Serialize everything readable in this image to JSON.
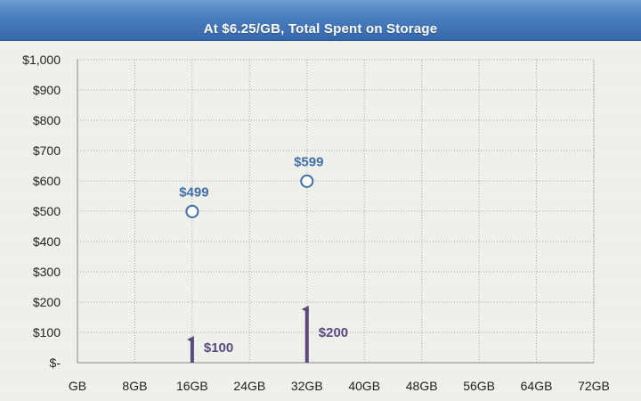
{
  "chart_data": {
    "type": "scatter",
    "title": "At $6.25/GB, Total Spent on Storage",
    "xlabel": "",
    "ylabel": "",
    "x_ticks": [
      "GB",
      "8GB",
      "16GB",
      "24GB",
      "32GB",
      "40GB",
      "48GB",
      "56GB",
      "64GB",
      "72GB"
    ],
    "xlim": [
      0,
      72
    ],
    "y_ticks": [
      "$-",
      "$100",
      "$200",
      "$300",
      "$400",
      "$500",
      "$600",
      "$700",
      "$800",
      "$900",
      "$1,000"
    ],
    "ylim": [
      0,
      1000
    ],
    "grid": "dotted",
    "series": [
      {
        "points": [
          {
            "x": 16,
            "y": 499,
            "label": "$499"
          },
          {
            "x": 32,
            "y": 599,
            "label": "$599"
          }
        ]
      },
      {
        "points": [
          {
            "x": 16,
            "y": 100,
            "label": "$100"
          },
          {
            "x": 32,
            "y": 200,
            "label": "$200"
          }
        ]
      }
    ],
    "colors": {
      "title_bar": "#4a7fc1",
      "point_label": "#3f6ea8",
      "point_stroke": "#3f6ea8",
      "point_fill": "#ffffff",
      "arrow": "#5a4a7e",
      "grid": "#a9a9a9"
    }
  }
}
